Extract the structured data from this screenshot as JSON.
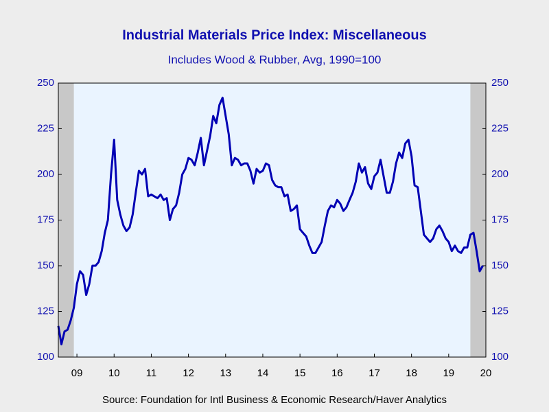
{
  "chart_data": {
    "type": "line",
    "title": "Industrial Materials Price Index: Miscellaneous",
    "subtitle": "Includes Wood & Rubber, Avg, 1990=100",
    "source": "Source:  Foundation for Intl Business & Economic Research/Haver Analytics",
    "x": [
      2009,
      2009.083,
      2009.167,
      2009.25,
      2009.333,
      2009.417,
      2009.5,
      2009.583,
      2009.667,
      2009.75,
      2009.833,
      2009.917,
      2010,
      2010.083,
      2010.167,
      2010.25,
      2010.333,
      2010.417,
      2010.5,
      2010.583,
      2010.667,
      2010.75,
      2010.833,
      2010.917,
      2011,
      2011.083,
      2011.167,
      2011.25,
      2011.333,
      2011.417,
      2011.5,
      2011.583,
      2011.667,
      2011.75,
      2011.833,
      2011.917,
      2012,
      2012.083,
      2012.167,
      2012.25,
      2012.333,
      2012.417,
      2012.5,
      2012.583,
      2012.667,
      2012.75,
      2012.833,
      2012.917,
      2013,
      2013.083,
      2013.167,
      2013.25,
      2013.333,
      2013.417,
      2013.5,
      2013.583,
      2013.667,
      2013.75,
      2013.833,
      2013.917,
      2014,
      2014.083,
      2014.167,
      2014.25,
      2014.333,
      2014.417,
      2014.5,
      2014.583,
      2014.667,
      2014.75,
      2014.833,
      2014.917,
      2015,
      2015.083,
      2015.167,
      2015.25,
      2015.333,
      2015.417,
      2015.5,
      2015.583,
      2015.667,
      2015.75,
      2015.833,
      2015.917,
      2016,
      2016.083,
      2016.167,
      2016.25,
      2016.333,
      2016.417,
      2016.5,
      2016.583,
      2016.667,
      2016.75,
      2016.833,
      2016.917,
      2017,
      2017.083,
      2017.167,
      2017.25,
      2017.333,
      2017.417,
      2017.5,
      2017.583,
      2017.667,
      2017.75,
      2017.833,
      2017.917,
      2018,
      2018.083,
      2018.167,
      2018.25,
      2018.333,
      2018.417,
      2018.5,
      2018.583,
      2018.667,
      2018.75,
      2018.833,
      2018.917,
      2019,
      2019.083,
      2019.167,
      2019.25,
      2019.333,
      2019.417,
      2019.5,
      2019.583,
      2019.667,
      2019.75,
      2019.833,
      2019.917,
      2020,
      2020.083,
      2020.167,
      2020.25,
      2020.333,
      2020.417
    ],
    "series": [
      {
        "name": "Miscellaneous",
        "color": "#0000b4",
        "values": [
          117,
          107,
          114,
          115,
          120,
          127,
          140,
          147,
          145,
          134,
          140,
          150,
          150,
          152,
          158,
          168,
          175,
          200,
          219,
          186,
          178,
          172,
          169,
          171,
          178,
          190,
          202,
          200,
          203,
          188,
          189,
          188,
          187,
          189,
          186,
          187,
          175,
          181,
          183,
          190,
          200,
          203,
          209,
          208,
          205,
          212,
          220,
          205,
          213,
          221,
          232,
          228,
          238,
          242,
          232,
          222,
          205,
          209,
          208,
          205,
          206,
          206,
          202,
          195,
          203,
          201,
          202,
          206,
          205,
          197,
          194,
          193,
          193,
          188,
          189,
          180,
          181,
          183,
          170,
          168,
          166,
          161,
          157,
          157,
          160,
          163,
          172,
          180,
          183,
          182,
          186,
          184,
          180,
          182,
          186,
          190,
          196,
          206,
          201,
          204,
          195,
          192,
          199,
          201,
          208,
          199,
          190,
          190,
          196,
          206,
          212,
          209,
          217,
          219,
          210,
          194,
          193,
          180,
          167,
          165,
          163,
          165,
          170,
          172,
          169,
          165,
          163,
          158,
          161,
          158,
          157,
          160,
          160,
          167,
          168,
          158,
          147,
          150
        ]
      }
    ],
    "recessions": [
      [
        2009,
        2009.417
      ],
      [
        2020.083,
        2020.5
      ]
    ],
    "xlim": [
      2009,
      2020.5
    ],
    "xticks": [
      {
        "value": 2009.5,
        "label": "09"
      },
      {
        "value": 2010.5,
        "label": "10"
      },
      {
        "value": 2011.5,
        "label": "11"
      },
      {
        "value": 2012.5,
        "label": "12"
      },
      {
        "value": 2013.5,
        "label": "13"
      },
      {
        "value": 2014.5,
        "label": "14"
      },
      {
        "value": 2015.5,
        "label": "15"
      },
      {
        "value": 2016.5,
        "label": "16"
      },
      {
        "value": 2017.5,
        "label": "17"
      },
      {
        "value": 2018.5,
        "label": "18"
      },
      {
        "value": 2019.5,
        "label": "19"
      },
      {
        "value": 2020.5,
        "label": "20"
      }
    ],
    "ylim": [
      100,
      250
    ],
    "yticks": [
      100,
      125,
      150,
      175,
      200,
      225,
      250
    ]
  }
}
